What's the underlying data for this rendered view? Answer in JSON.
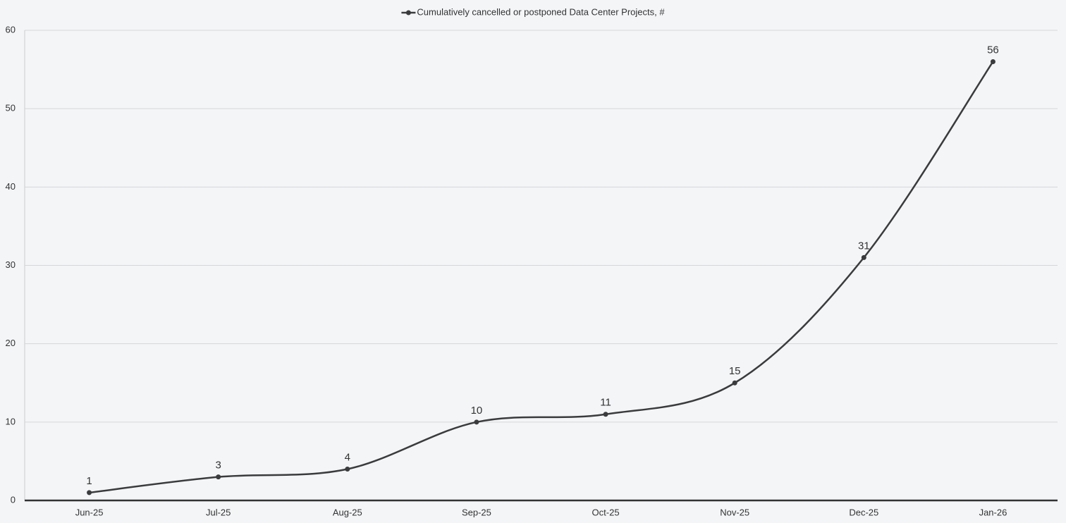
{
  "chart_data": {
    "type": "line",
    "categories": [
      "Jun-25",
      "Jul-25",
      "Aug-25",
      "Sep-25",
      "Oct-25",
      "Nov-25",
      "Dec-25",
      "Jan-26"
    ],
    "series": [
      {
        "name": "Cumulatively cancelled or postponed Data Center Projects, #",
        "color": "#3a3b3d",
        "values": [
          1,
          3,
          4,
          10,
          11,
          15,
          31,
          56
        ]
      }
    ],
    "ylim": [
      0,
      60
    ],
    "yticks": [
      0,
      10,
      20,
      30,
      40,
      50,
      60
    ],
    "grid": true,
    "smooth": true,
    "legend": "top"
  }
}
